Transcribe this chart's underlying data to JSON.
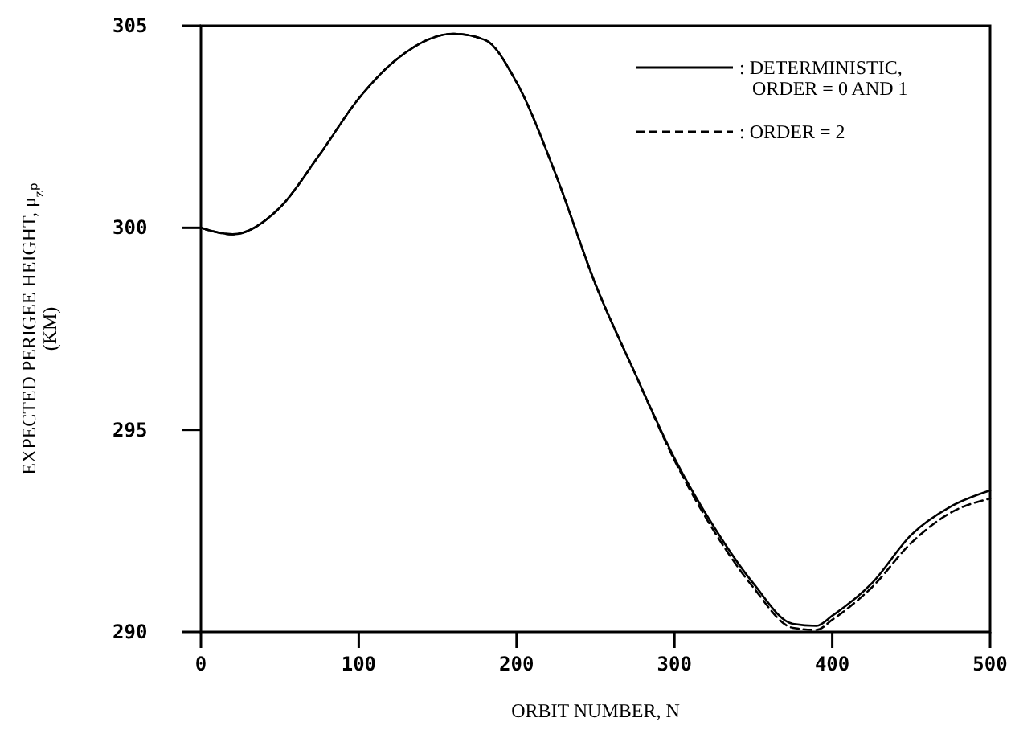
{
  "chart_data": {
    "type": "line",
    "xlabel": "ORBIT NUMBER, N",
    "ylabel": "EXPECTED PERIGEE HEIGHT, μ$_{z}$ₚ\n(KM)",
    "x": [
      0,
      20,
      50,
      75,
      100,
      125,
      160,
      180,
      200,
      225,
      250,
      275,
      300,
      325,
      350,
      375,
      390,
      400,
      425,
      450,
      475,
      500
    ],
    "series": [
      {
        "name": ": DETERMINISTIC, ORDER = 0 AND 1",
        "color": "#000000",
        "line_style": "solid",
        "values": [
          300.0,
          299.84,
          300.5,
          301.8,
          303.2,
          304.2,
          304.8,
          304.65,
          303.6,
          301.3,
          298.6,
          296.4,
          294.3,
          292.6,
          291.2,
          290.2,
          290.15,
          290.4,
          291.2,
          292.4,
          293.1,
          293.5
        ]
      },
      {
        "name": ": ORDER = 2",
        "color": "#000000",
        "line_style": "dashed",
        "values": [
          300.0,
          299.84,
          300.5,
          301.8,
          303.2,
          304.2,
          304.8,
          304.65,
          303.6,
          301.3,
          298.6,
          296.4,
          294.25,
          292.5,
          291.1,
          290.1,
          290.05,
          290.3,
          291.1,
          292.2,
          292.95,
          293.3
        ]
      }
    ],
    "xlim": [
      0,
      500
    ],
    "xticks": [
      0,
      100,
      200,
      300,
      400,
      500
    ],
    "ylim": [
      290,
      305
    ],
    "yticks": [
      290,
      295,
      300,
      305
    ],
    "grid": false,
    "legend": "top right",
    "marker": "none"
  }
}
